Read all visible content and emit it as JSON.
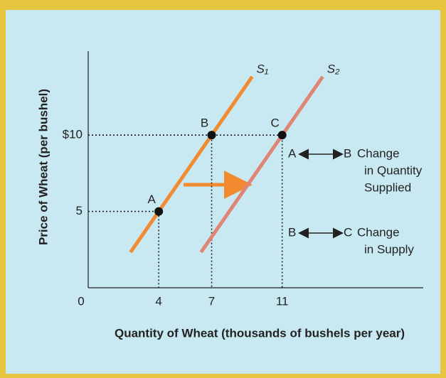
{
  "chart_data": {
    "type": "line",
    "xlabel": "Quantity of Wheat (thousands of bushels per year)",
    "ylabel": "Price of Wheat (per bushel)",
    "xlim": [
      0,
      19
    ],
    "ylim": [
      0,
      15.5
    ],
    "xticks": [
      0,
      4,
      7,
      11
    ],
    "yticks": [
      5,
      {
        "value": 10,
        "label": "$10"
      }
    ],
    "series": [
      {
        "name": "S₁",
        "color": "#f28a30",
        "x": [
          2.4,
          9.3
        ],
        "values": [
          2.33,
          13.83
        ]
      },
      {
        "name": "S₂",
        "color": "#e08474",
        "x": [
          6.4,
          13.3
        ],
        "values": [
          2.33,
          13.83
        ]
      }
    ],
    "points": [
      {
        "label": "A",
        "x": 4,
        "y": 5
      },
      {
        "label": "B",
        "x": 7,
        "y": 10
      },
      {
        "label": "C",
        "x": 11,
        "y": 10
      }
    ],
    "annotations": [
      {
        "from": "A",
        "to": "B",
        "lines": [
          "Change",
          "in Quantity",
          "Supplied"
        ]
      },
      {
        "from": "B",
        "to": "C",
        "lines": [
          "Change",
          "in Supply"
        ]
      }
    ]
  }
}
